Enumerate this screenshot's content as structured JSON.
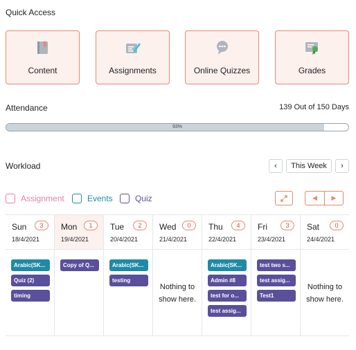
{
  "quick_access": {
    "title": "Quick Access",
    "cards": [
      {
        "label": "Content",
        "icon": "book-icon"
      },
      {
        "label": "Assignments",
        "icon": "pencil-icon"
      },
      {
        "label": "Online Quizzes",
        "icon": "quiz-bubble-icon"
      },
      {
        "label": "Grades",
        "icon": "certificate-icon"
      }
    ]
  },
  "attendance": {
    "title": "Attendance",
    "count_text": "139 Out of 150 Days",
    "percent_text": "93%",
    "progress": 0.93
  },
  "workload": {
    "title": "Workload",
    "this_week_label": "This Week",
    "prev_icon": "chevron-left-icon",
    "next_icon": "chevron-right-icon",
    "legend": {
      "assignment": "Assignment",
      "events": "Events",
      "quiz": "Quiz"
    },
    "colors": {
      "accent": "#e8886f",
      "assignment": "#e97fa2",
      "event": "#1f8aa5",
      "quiz": "#5a4f9b"
    },
    "empty_line1": "Nothing to",
    "empty_line2": "show here.",
    "days": [
      {
        "name": "Sun",
        "count": "3",
        "date": "18/4/2021",
        "items": [
          {
            "text": "Arabic(SK...",
            "type": "event"
          },
          {
            "text": "Quiz (2)",
            "type": "quiz"
          },
          {
            "text": "timing",
            "type": "quiz"
          }
        ]
      },
      {
        "name": "Mon",
        "count": "1",
        "date": "19/4/2021",
        "today": true,
        "items": [
          {
            "text": "Copy of Q...",
            "type": "quiz"
          }
        ]
      },
      {
        "name": "Tue",
        "count": "2",
        "date": "20/4/2021",
        "items": [
          {
            "text": "Arabic(SK...",
            "type": "event"
          },
          {
            "text": "testing",
            "type": "quiz"
          }
        ]
      },
      {
        "name": "Wed",
        "count": "0",
        "date": "21/4/2021",
        "items": []
      },
      {
        "name": "Thu",
        "count": "4",
        "date": "22/4/2021",
        "items": [
          {
            "text": "Arabic(SK...",
            "type": "event"
          },
          {
            "text": "Admin #8",
            "type": "quiz"
          },
          {
            "text": "test for o...",
            "type": "quiz"
          },
          {
            "text": "test assig...",
            "type": "quiz"
          }
        ]
      },
      {
        "name": "Fri",
        "count": "3",
        "date": "23/4/2021",
        "items": [
          {
            "text": "test two s...",
            "type": "quiz"
          },
          {
            "text": "test assig...",
            "type": "quiz"
          },
          {
            "text": "Test1",
            "type": "quiz"
          }
        ]
      },
      {
        "name": "Sat",
        "count": "0",
        "date": "24/4/2021",
        "items": []
      }
    ]
  }
}
